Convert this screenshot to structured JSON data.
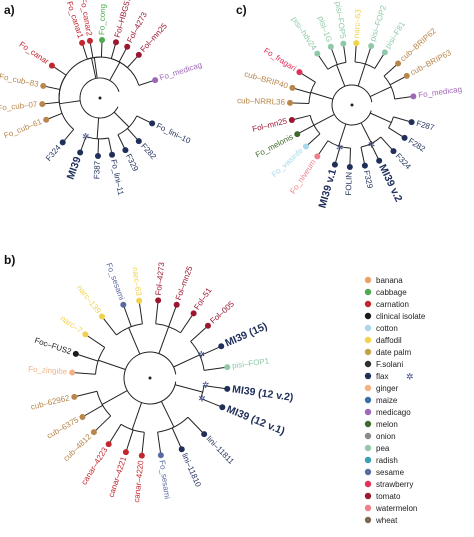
{
  "panels": [
    {
      "label": "a)",
      "center": [
        100,
        98
      ],
      "tips": [
        {
          "text": "Fo_canar1",
          "host": "carnation",
          "angle": 252,
          "rot": -70
        },
        {
          "text": "Fo_canar2",
          "host": "carnation",
          "angle": 260,
          "rot": -70
        },
        {
          "text": "Fo_cong",
          "host": "cabbage",
          "angle": 272,
          "rot": -88
        },
        {
          "text": "Fol–HBG576",
          "host": "tomato",
          "angle": 286,
          "rot": -78
        },
        {
          "text": "Fol–4273",
          "host": "tomato",
          "angle": 298,
          "rot": -65
        },
        {
          "text": "Fol–mn25",
          "host": "tomato",
          "angle": 312,
          "rot": -50
        },
        {
          "text": "Fo_medicag",
          "host": "medicago",
          "angle": 342,
          "rot": -18
        },
        {
          "text": "Fo_cub–83",
          "host": "cucumber",
          "angle": 192,
          "rot": 12
        },
        {
          "text": "Fo_cub–07",
          "host": "cucumber",
          "angle": 174,
          "rot": -4
        },
        {
          "text": "Fo_cub–61",
          "host": "cucumber",
          "angle": 158,
          "rot": -20
        },
        {
          "text": "Fo_canar",
          "host": "carnation",
          "angle": 214,
          "rot": 34
        },
        {
          "text": "F324",
          "host": "flax",
          "angle": 130,
          "rot": -48
        },
        {
          "text": "MI39",
          "host": "flax",
          "angle": 110,
          "rot": -70,
          "big": true
        },
        {
          "text": "F387",
          "host": "flax",
          "angle": 92,
          "rot": -88
        },
        {
          "text": "Fo_lini–11",
          "host": "flax",
          "angle": 78,
          "rot": -78
        },
        {
          "text": "F329",
          "host": "flax",
          "angle": 64,
          "rot": -62
        },
        {
          "text": "F282",
          "host": "flax",
          "angle": 48,
          "rot": -42
        },
        {
          "text": "Fo_lini–10",
          "host": "flax",
          "angle": 26,
          "rot": -26
        }
      ]
    },
    {
      "label": "c)",
      "center": [
        352,
        105
      ],
      "tips": [
        {
          "text": "pisi–FOP5",
          "host": "pea",
          "angle": 262,
          "rot": -80
        },
        {
          "text": "pisi–hdv24",
          "host": "pea",
          "angle": 236,
          "rot": -50
        },
        {
          "text": "pisi–1G",
          "host": "pea",
          "angle": 250,
          "rot": -66
        },
        {
          "text": "narc–63",
          "host": "daffodil",
          "angle": 274,
          "rot": -84
        },
        {
          "text": "pisi–FOP2",
          "host": "pea",
          "angle": 288,
          "rot": -76
        },
        {
          "text": "pisi–F81",
          "host": "pea",
          "angle": 302,
          "rot": -62
        },
        {
          "text": "cub–BRIP62",
          "host": "cucumber",
          "angle": 318,
          "rot": -48
        },
        {
          "text": "cub–BRIP63",
          "host": "cucumber",
          "angle": 332,
          "rot": -36
        },
        {
          "text": "Fo_medicag",
          "host": "medicago",
          "angle": 352,
          "rot": -18
        },
        {
          "text": "Fo_fragari",
          "host": "strawberry",
          "angle": 212,
          "rot": 30
        },
        {
          "text": "cub–BRIP40",
          "host": "cucumber",
          "angle": 196,
          "rot": 14
        },
        {
          "text": "cub–NRRL36",
          "host": "cucumber",
          "angle": 182,
          "rot": 0
        },
        {
          "text": "Fol–mn25",
          "host": "tomato",
          "angle": 166,
          "rot": -14
        },
        {
          "text": "Fo_melonis",
          "host": "melon",
          "angle": 152,
          "rot": -30
        },
        {
          "text": "Fo_vasinfe",
          "host": "cotton",
          "angle": 138,
          "rot": -44
        },
        {
          "text": "Fo_niveum",
          "host": "watermelon",
          "angle": 124,
          "rot": -58
        },
        {
          "text": "MI39 v.1",
          "host": "flax",
          "angle": 106,
          "rot": -76,
          "big": true
        },
        {
          "text": "FOLIN",
          "host": "flax",
          "angle": 92,
          "rot": -88
        },
        {
          "text": "F329",
          "host": "flax",
          "angle": 78,
          "rot": -76
        },
        {
          "text": "MI39 v.2",
          "host": "flax",
          "angle": 64,
          "rot": -62,
          "big": true
        },
        {
          "text": "F324",
          "host": "flax",
          "angle": 48,
          "rot": -46
        },
        {
          "text": "F282",
          "host": "flax",
          "angle": 32,
          "rot": -30
        },
        {
          "text": "F287",
          "host": "flax",
          "angle": 16,
          "rot": -14
        }
      ]
    },
    {
      "label": "b)",
      "center": [
        150,
        378
      ],
      "tips": [
        {
          "text": "narc–63",
          "host": "daffodil",
          "angle": 262,
          "rot": -82
        },
        {
          "text": "Fo_sesami",
          "host": "sesame",
          "angle": 250,
          "rot": -70
        },
        {
          "text": "narc–139",
          "host": "daffodil",
          "angle": 232,
          "rot": -52
        },
        {
          "text": "narc–7",
          "host": "daffodil",
          "angle": 214,
          "rot": -34
        },
        {
          "text": "Foc–FUS2",
          "host": "clinical isolate",
          "angle": 198,
          "rot": -18
        },
        {
          "text": "Fo_zingibe",
          "host": "ginger",
          "angle": 184,
          "rot": -4
        },
        {
          "text": "Fol–4273",
          "host": "tomato",
          "angle": 276,
          "rot": -84
        },
        {
          "text": "Fol–mn25",
          "host": "tomato",
          "angle": 290,
          "rot": -74
        },
        {
          "text": "Fol–51",
          "host": "tomato",
          "angle": 304,
          "rot": -62
        },
        {
          "text": "Fol–005",
          "host": "tomato",
          "angle": 318,
          "rot": -48
        },
        {
          "text": "MI39 (15)",
          "host": "flax",
          "angle": 336,
          "rot": -26,
          "big": true
        },
        {
          "text": "pisi–FOP1",
          "host": "pea",
          "angle": 352,
          "rot": -10
        },
        {
          "text": "cub–62962",
          "host": "cucumber",
          "angle": 166,
          "rot": -14
        },
        {
          "text": "cub–6375",
          "host": "cucumber",
          "angle": 150,
          "rot": -30
        },
        {
          "text": "cub–4812",
          "host": "cucumber",
          "angle": 136,
          "rot": -44
        },
        {
          "text": "canar–4223",
          "host": "carnation",
          "angle": 122,
          "rot": -58
        },
        {
          "text": "canar–4221",
          "host": "carnation",
          "angle": 108,
          "rot": -72
        },
        {
          "text": "canar–4220",
          "host": "carnation",
          "angle": 96,
          "rot": -84
        },
        {
          "text": "Fo_sesami",
          "host": "sesame",
          "angle": 82,
          "rot": -82
        },
        {
          "text": "lini–11810",
          "host": "flax",
          "angle": 66,
          "rot": -68
        },
        {
          "text": "lini–11811",
          "host": "flax",
          "angle": 46,
          "rot": -46
        },
        {
          "text": "MI39 (12 v.1)",
          "host": "flax",
          "angle": 22,
          "rot": -22,
          "big": true
        },
        {
          "text": "MI39 (12 v.2)",
          "host": "flax",
          "angle": 8,
          "rot": -8,
          "big": true
        }
      ]
    }
  ],
  "legend": [
    {
      "name": "banana",
      "color": "#e8a36a"
    },
    {
      "name": "cabbage",
      "color": "#4daa4f"
    },
    {
      "name": "carnation",
      "color": "#c1272d"
    },
    {
      "name": "clinical isolate",
      "color": "#1a1a1a"
    },
    {
      "name": "cotton",
      "color": "#a8d8ea"
    },
    {
      "name": "daffodil",
      "color": "#f2d24b"
    },
    {
      "name": "date palm",
      "color": "#c9a04a"
    },
    {
      "name": "F.solani",
      "color": "#2e2e2e"
    },
    {
      "name": "flax",
      "color": "#1f2f5a"
    },
    {
      "name": "ginger",
      "color": "#f4b183"
    },
    {
      "name": "maize",
      "color": "#3a6ea5"
    },
    {
      "name": "medicago",
      "color": "#9e68b8"
    },
    {
      "name": "melon",
      "color": "#3f6b2a"
    },
    {
      "name": "onion",
      "color": "#8a8a8a"
    },
    {
      "name": "pea",
      "color": "#8fc9a8"
    },
    {
      "name": "radish",
      "color": "#3aa0b0"
    },
    {
      "name": "sesame",
      "color": "#5a6ba0"
    },
    {
      "name": "strawberry",
      "color": "#e0315a"
    },
    {
      "name": "tomato",
      "color": "#9b1730"
    },
    {
      "name": "watermelon",
      "color": "#f07f8a"
    },
    {
      "name": "wheat",
      "color": "#7a6a55"
    }
  ],
  "extra_hosts": {
    "cucumber": "#b8864b"
  }
}
